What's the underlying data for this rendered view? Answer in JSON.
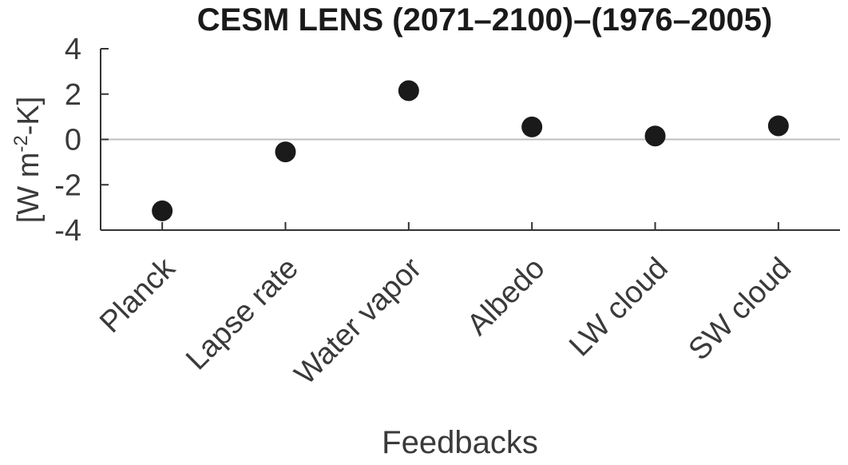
{
  "chart_data": {
    "type": "scatter",
    "title": "CESM LENS (2071–2100)–(1976–2005)",
    "xlabel": "Feedbacks",
    "ylabel": {
      "prefix": "[W m",
      "superscript": "-2",
      "suffix": "-K]"
    },
    "categories": [
      "Planck",
      "Lapse rate",
      "Water vapor",
      "Albedo",
      "LW cloud",
      "SW cloud"
    ],
    "series": [
      {
        "values": [
          -3.15,
          -0.55,
          2.15,
          0.55,
          0.15,
          0.6
        ]
      }
    ],
    "ylim": [
      -4,
      4
    ],
    "yticks": [
      4,
      2,
      0,
      -2,
      -4
    ],
    "zero_line": true,
    "marker_color": "#1a1a1a",
    "axis_color": "#333333",
    "zero_line_color": "#bfbfbf",
    "grid": false
  }
}
